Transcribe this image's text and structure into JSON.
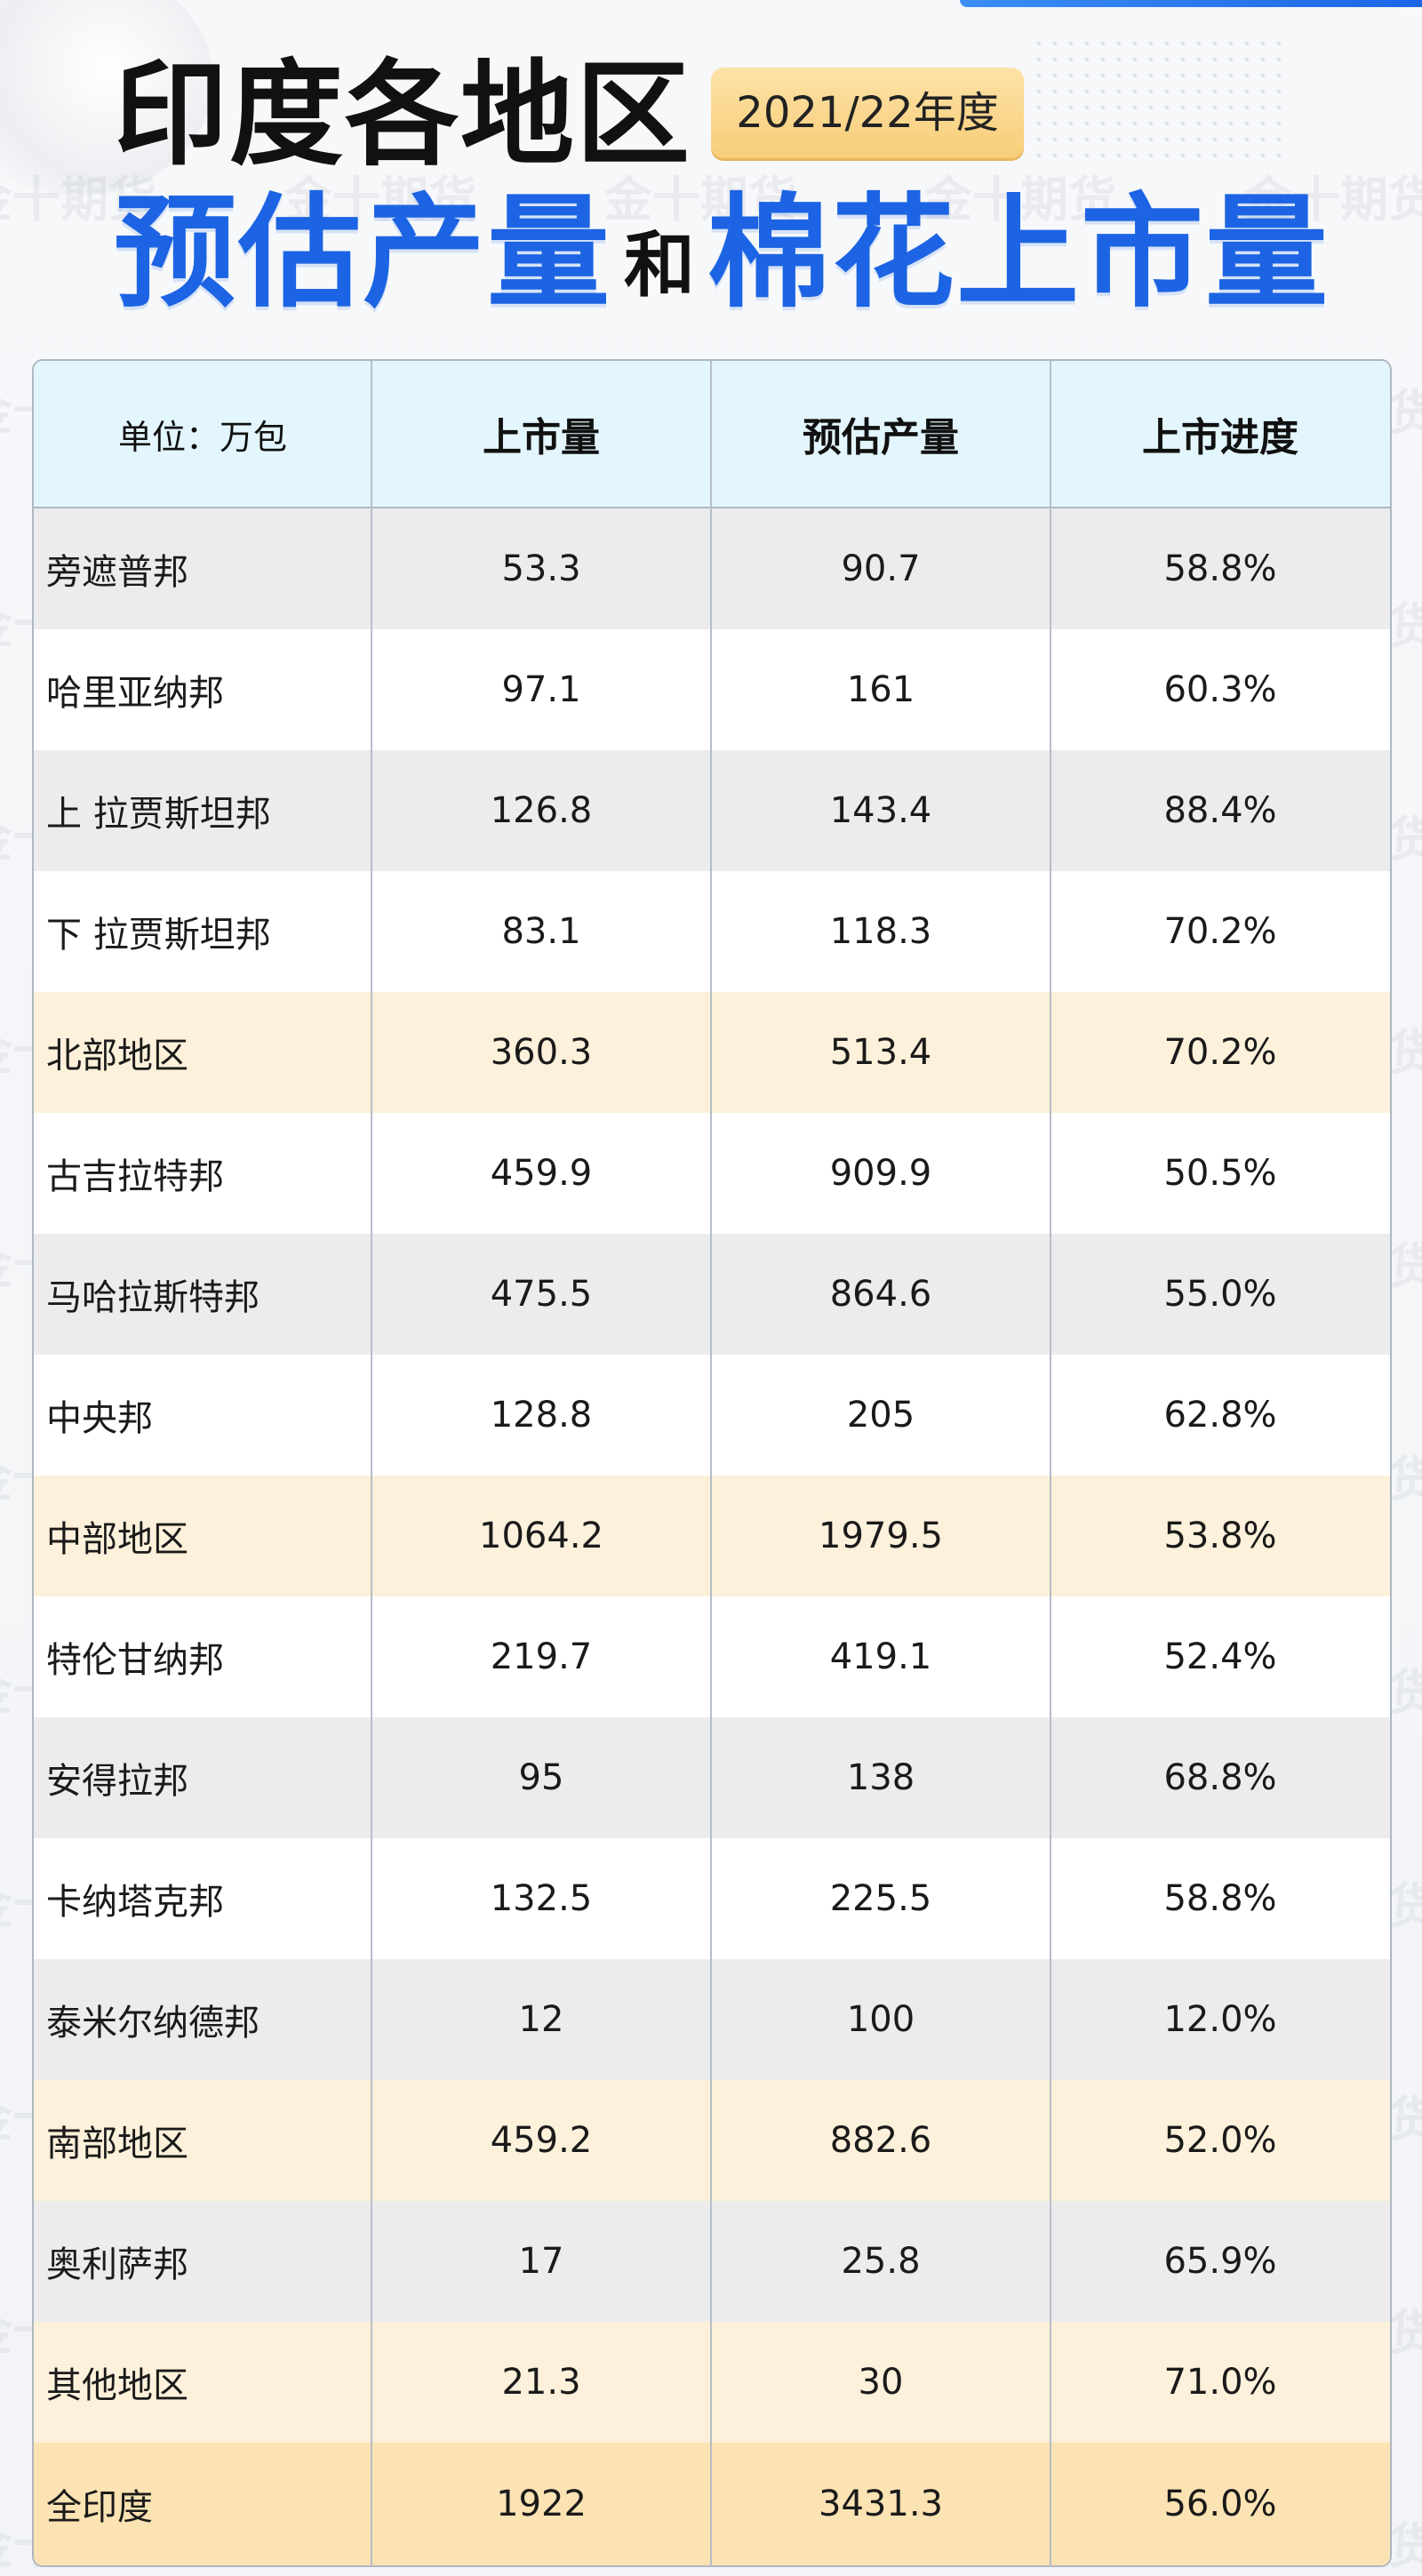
{
  "header": {
    "title_line1": "印度各地区",
    "year_badge": "2021/22年度",
    "title_part_a": "预估产量",
    "title_connector": "和",
    "title_part_b": "棉花上市量"
  },
  "watermark_text": "金十期货",
  "table": {
    "columns": [
      "单位：万包",
      "上市量",
      "预估产量",
      "上市进度"
    ],
    "rows": [
      {
        "region": "旁遮普邦",
        "arrivals": "53.3",
        "estimate": "90.7",
        "progress": "58.8%",
        "style": "gray"
      },
      {
        "region": "哈里亚纳邦",
        "arrivals": "97.1",
        "estimate": "161",
        "progress": "60.3%",
        "style": "white"
      },
      {
        "region": "上 拉贾斯坦邦",
        "arrivals": "126.8",
        "estimate": "143.4",
        "progress": "88.4%",
        "style": "gray"
      },
      {
        "region": "下 拉贾斯坦邦",
        "arrivals": "83.1",
        "estimate": "118.3",
        "progress": "70.2%",
        "style": "white"
      },
      {
        "region": "北部地区",
        "arrivals": "360.3",
        "estimate": "513.4",
        "progress": "70.2%",
        "style": "sub"
      },
      {
        "region": "古吉拉特邦",
        "arrivals": "459.9",
        "estimate": "909.9",
        "progress": "50.5%",
        "style": "white"
      },
      {
        "region": "马哈拉斯特邦",
        "arrivals": "475.5",
        "estimate": "864.6",
        "progress": "55.0%",
        "style": "gray"
      },
      {
        "region": "中央邦",
        "arrivals": "128.8",
        "estimate": "205",
        "progress": "62.8%",
        "style": "white"
      },
      {
        "region": "中部地区",
        "arrivals": "1064.2",
        "estimate": "1979.5",
        "progress": "53.8%",
        "style": "sub"
      },
      {
        "region": "特伦甘纳邦",
        "arrivals": "219.7",
        "estimate": "419.1",
        "progress": "52.4%",
        "style": "white"
      },
      {
        "region": "安得拉邦",
        "arrivals": "95",
        "estimate": "138",
        "progress": "68.8%",
        "style": "gray"
      },
      {
        "region": "卡纳塔克邦",
        "arrivals": "132.5",
        "estimate": "225.5",
        "progress": "58.8%",
        "style": "white"
      },
      {
        "region": "泰米尔纳德邦",
        "arrivals": "12",
        "estimate": "100",
        "progress": "12.0%",
        "style": "gray"
      },
      {
        "region": "南部地区",
        "arrivals": "459.2",
        "estimate": "882.6",
        "progress": "52.0%",
        "style": "sub"
      },
      {
        "region": "奥利萨邦",
        "arrivals": "17",
        "estimate": "25.8",
        "progress": "65.9%",
        "style": "gray"
      },
      {
        "region": "其他地区",
        "arrivals": "21.3",
        "estimate": "30",
        "progress": "71.0%",
        "style": "sub"
      },
      {
        "region": "全印度",
        "arrivals": "1922",
        "estimate": "3431.3",
        "progress": "56.0%",
        "style": "total"
      }
    ]
  }
}
